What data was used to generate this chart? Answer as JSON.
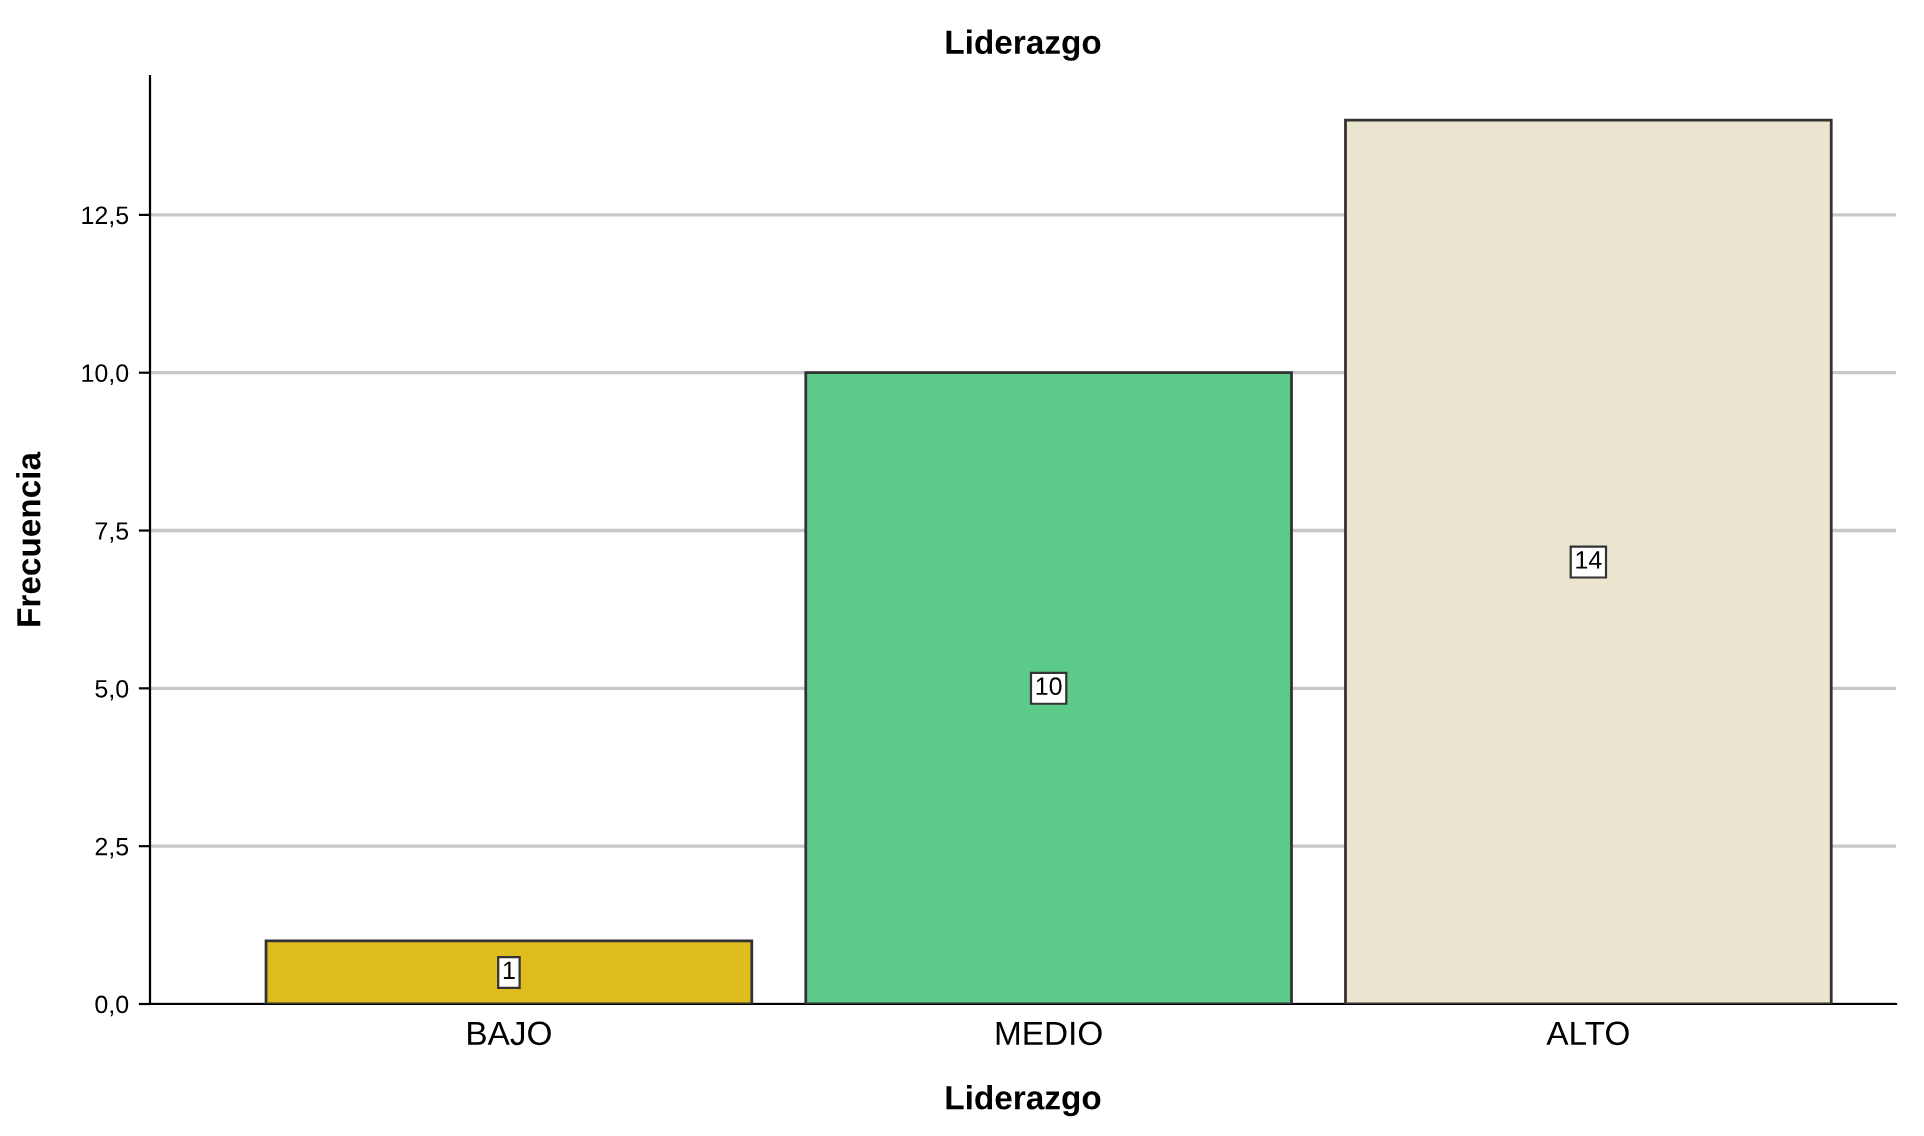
{
  "chart_data": {
    "type": "bar",
    "title": "Liderazgo",
    "xlabel": "Liderazgo",
    "ylabel": "Frecuencia",
    "categories": [
      "BAJO",
      "MEDIO",
      "ALTO"
    ],
    "values": [
      1,
      10,
      14
    ],
    "colors": [
      "#e0bd1f",
      "#5ccb8a",
      "#ebe5d0"
    ],
    "ylim": [
      0,
      14.7
    ],
    "yticks": [
      {
        "value": 0,
        "label": "0,0"
      },
      {
        "value": 2.5,
        "label": "2,5"
      },
      {
        "value": 5,
        "label": "5,0"
      },
      {
        "value": 7.5,
        "label": "7,5"
      },
      {
        "value": 10,
        "label": "10,0"
      },
      {
        "value": 12.5,
        "label": "12,5"
      }
    ],
    "grid": "y",
    "data_labels": true
  }
}
